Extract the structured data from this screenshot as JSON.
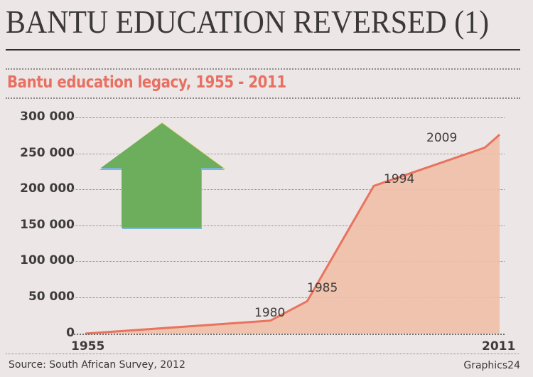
{
  "header": {
    "headline": "BANTU EDUCATION REVERSED (1)",
    "subtitle": "Bantu education legacy, 1955 - 2011"
  },
  "footer": {
    "source": "Source: South African Survey, 2012",
    "credit": "Graphics24"
  },
  "colors": {
    "background": "#ece7e6",
    "subtitle": "#e87062",
    "area_fill": "#f1bfa7",
    "line": "#e8735f",
    "arrow_fill": "#6cae5c",
    "arrow_shadow_top": "#e8d36a",
    "arrow_shadow_bottom": "#7ab8d6",
    "text": "#3f3c3c"
  },
  "icons": {
    "arrow": "up-arrow-icon"
  },
  "chart_data": {
    "type": "area",
    "title": "Bantu education legacy, 1955 - 2011",
    "xlabel": "",
    "ylabel": "",
    "x": [
      1955,
      1980,
      1985,
      1994,
      2009,
      2011
    ],
    "series": [
      {
        "name": "Bantu education legacy",
        "values": [
          0,
          18000,
          45000,
          205000,
          258000,
          276000
        ]
      }
    ],
    "point_labels": [
      "1980",
      "1985",
      "1994",
      "2009"
    ],
    "x_tick_labels": [
      "1955",
      "2011"
    ],
    "y_tick_labels": [
      "300 000",
      "250 000",
      "200 000",
      "150 000",
      "100 000",
      "50 000",
      "0"
    ],
    "yticks": [
      300000,
      250000,
      200000,
      150000,
      100000,
      50000,
      0
    ],
    "ylim": [
      0,
      300000
    ],
    "xlim": [
      1955,
      2011
    ],
    "grid": true,
    "legend": "none",
    "annotations": [
      "green up arrow"
    ]
  }
}
